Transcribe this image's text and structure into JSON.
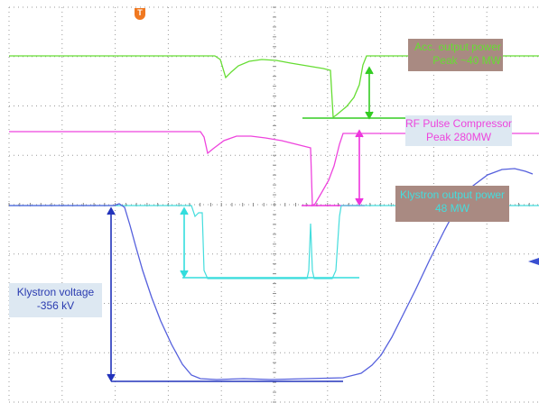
{
  "chart_data": {
    "type": "line",
    "title": "",
    "xlabel": "",
    "ylabel": "",
    "grid": true,
    "trigger_marker": "T",
    "series": [
      {
        "name": "Acc. output power",
        "color": "#66dd33"
      },
      {
        "name": "RF Pulse Compressor",
        "color": "#ee44dd"
      },
      {
        "name": "Klystron output power",
        "color": "#44dddd"
      },
      {
        "name": "Klystron voltage",
        "color": "#5560dd"
      }
    ],
    "annotations": {
      "acc": {
        "line1": "Acc. output power",
        "line2": "Peak ~40 MW",
        "bg": "#a98a82",
        "color": "#66dd33"
      },
      "rfpc": {
        "line1": "RF Pulse Compressor",
        "line2": "Peak 280MW",
        "bg": "#dde8f2",
        "color": "#ee44dd"
      },
      "kly_power": {
        "line1": "Klystron output power",
        "line2": "48 MW",
        "bg": "#a98a82",
        "color": "#44dddd"
      },
      "kly_voltage": {
        "line1": "Klystron voltage",
        "line2": "-356 kV",
        "bg": "#dde8f2",
        "color": "#2a3bb0"
      }
    }
  }
}
